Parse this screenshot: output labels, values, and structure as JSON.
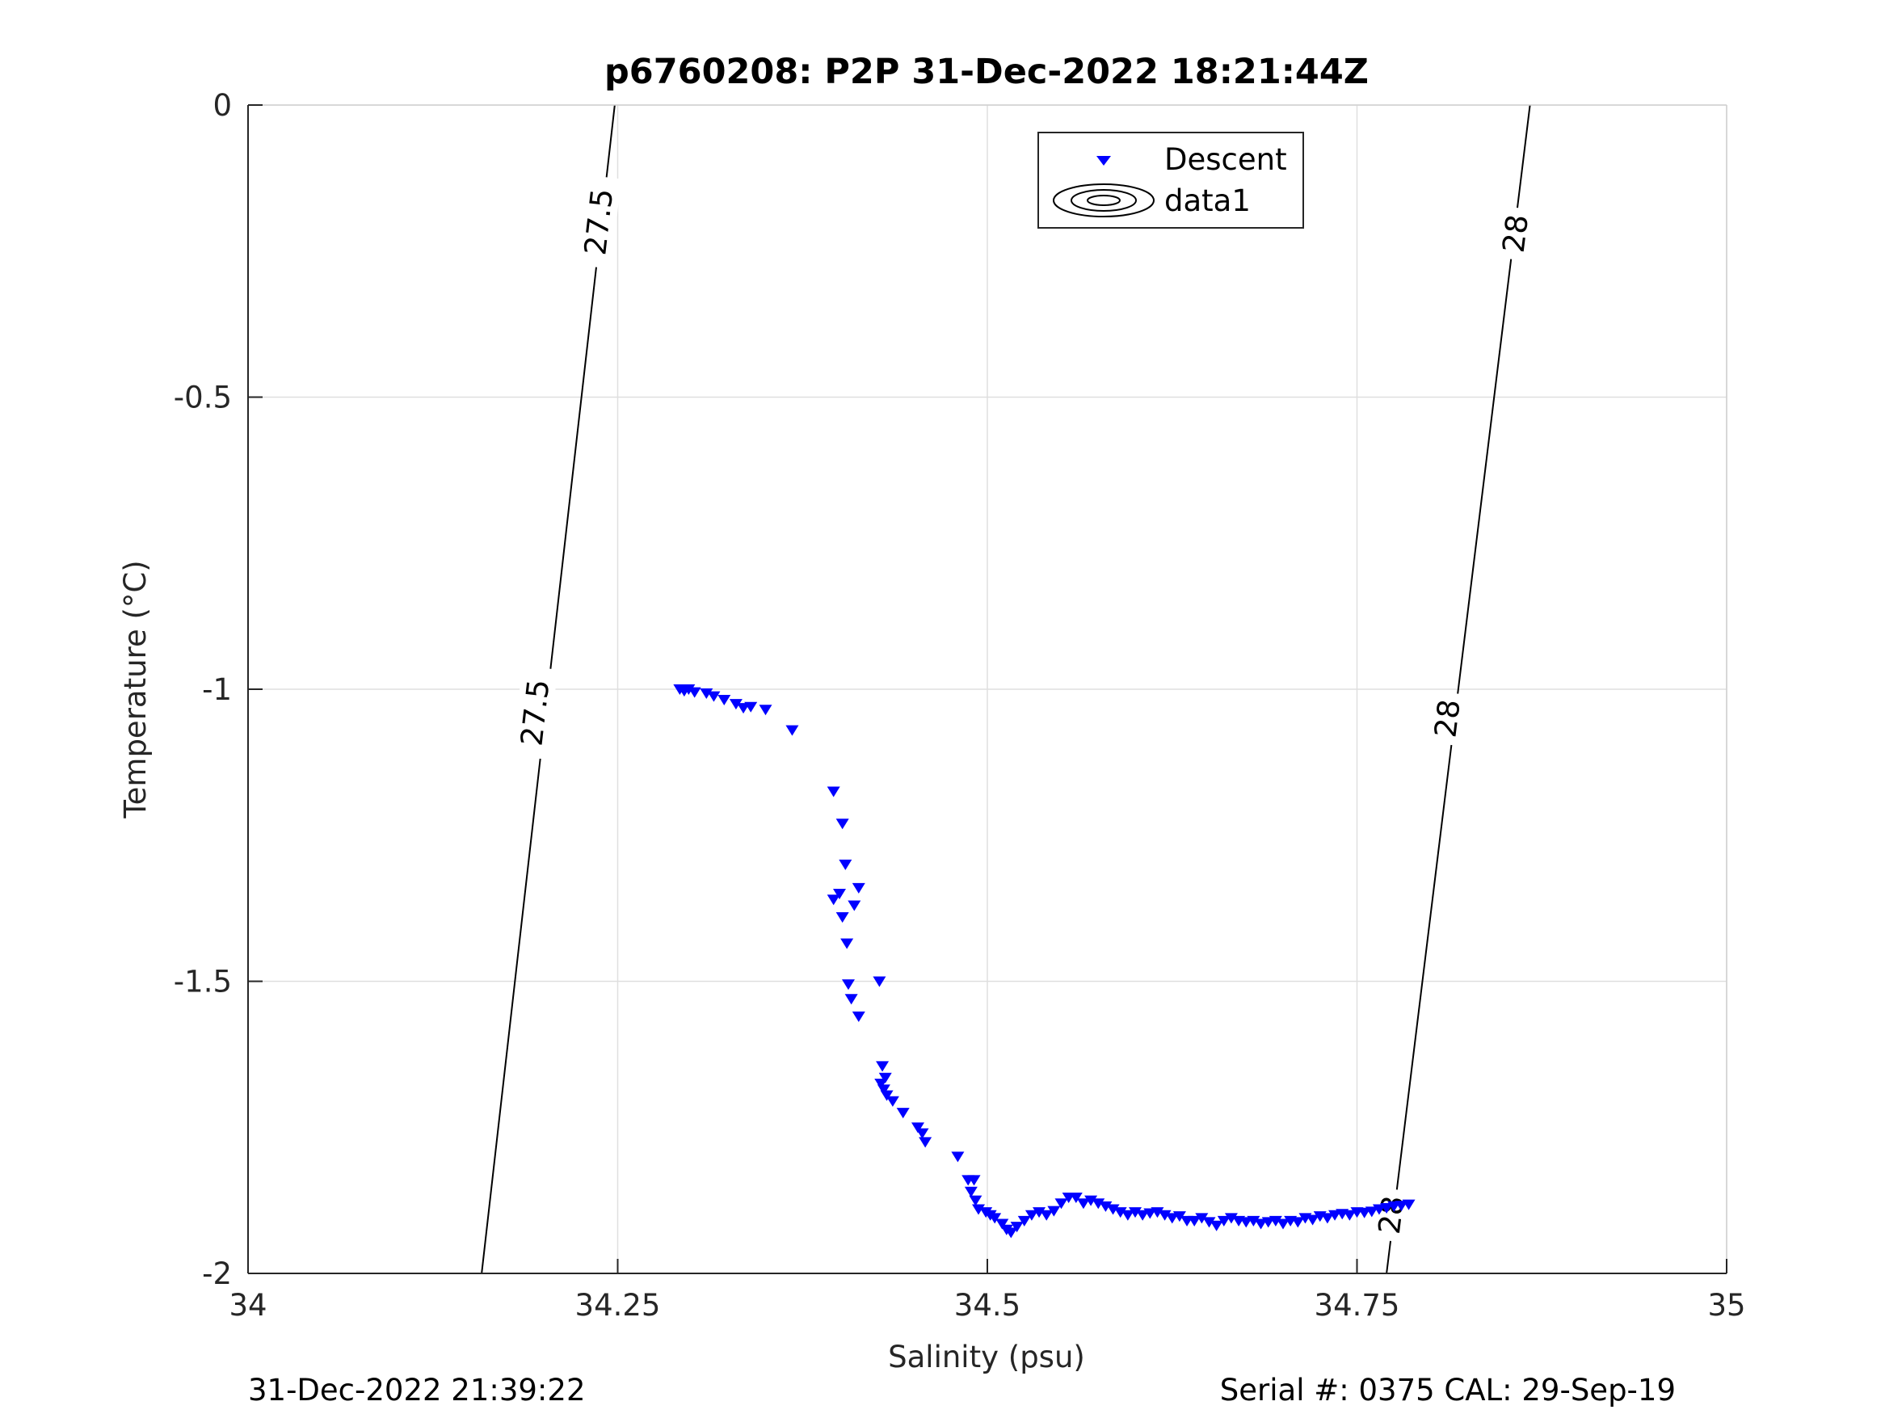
{
  "header": {
    "title": "p6760208: P2P 31-Dec-2022 18:21:44Z"
  },
  "footer": {
    "timestamp": "31-Dec-2022 21:39:22",
    "serial": "Serial #: 0375  CAL: 29-Sep-19"
  },
  "chart_data": {
    "type": "scatter",
    "title": "p6760208: P2P 31-Dec-2022 18:21:44Z",
    "xlabel": "Salinity (psu)",
    "ylabel": "Temperature (°C)",
    "xlim": [
      34,
      35
    ],
    "ylim": [
      -2,
      0
    ],
    "xticks": [
      34,
      34.25,
      34.5,
      34.75,
      35
    ],
    "xtick_labels": [
      "34",
      "34.25",
      "34.5",
      "34.75",
      "35"
    ],
    "yticks": [
      0,
      -0.5,
      -1,
      -1.5,
      -2
    ],
    "ytick_labels": [
      "0",
      "-0.5",
      "-1",
      "-1.5",
      "-2"
    ],
    "grid": true,
    "legend_position": "top-center",
    "legend": [
      "Descent",
      "data1"
    ],
    "series": [
      {
        "name": "Descent",
        "marker": "triangle-down",
        "color": "#0000ff",
        "points": [
          [
            34.292,
            -1.0
          ],
          [
            34.295,
            -1.003
          ],
          [
            34.298,
            -1.0
          ],
          [
            34.302,
            -1.005
          ],
          [
            34.31,
            -1.007
          ],
          [
            34.315,
            -1.012
          ],
          [
            34.322,
            -1.018
          ],
          [
            34.33,
            -1.025
          ],
          [
            34.335,
            -1.032
          ],
          [
            34.34,
            -1.03
          ],
          [
            34.35,
            -1.035
          ],
          [
            34.368,
            -1.07
          ],
          [
            34.396,
            -1.175
          ],
          [
            34.402,
            -1.23
          ],
          [
            34.404,
            -1.3
          ],
          [
            34.413,
            -1.34
          ],
          [
            34.4,
            -1.35
          ],
          [
            34.396,
            -1.36
          ],
          [
            34.41,
            -1.37
          ],
          [
            34.402,
            -1.39
          ],
          [
            34.405,
            -1.435
          ],
          [
            34.427,
            -1.5
          ],
          [
            34.406,
            -1.505
          ],
          [
            34.408,
            -1.53
          ],
          [
            34.413,
            -1.56
          ],
          [
            34.429,
            -1.645
          ],
          [
            34.431,
            -1.665
          ],
          [
            34.428,
            -1.675
          ],
          [
            34.43,
            -1.685
          ],
          [
            34.432,
            -1.695
          ],
          [
            34.436,
            -1.705
          ],
          [
            34.443,
            -1.725
          ],
          [
            34.453,
            -1.75
          ],
          [
            34.456,
            -1.76
          ],
          [
            34.458,
            -1.775
          ],
          [
            34.48,
            -1.8
          ],
          [
            34.487,
            -1.84
          ],
          [
            34.491,
            -1.84
          ],
          [
            34.489,
            -1.86
          ],
          [
            34.492,
            -1.875
          ],
          [
            34.494,
            -1.89
          ],
          [
            34.499,
            -1.895
          ],
          [
            34.502,
            -1.9
          ],
          [
            34.505,
            -1.905
          ],
          [
            34.51,
            -1.915
          ],
          [
            34.513,
            -1.925
          ],
          [
            34.516,
            -1.93
          ],
          [
            34.52,
            -1.92
          ],
          [
            34.525,
            -1.91
          ],
          [
            34.53,
            -1.9
          ],
          [
            34.535,
            -1.895
          ],
          [
            34.54,
            -1.9
          ],
          [
            34.545,
            -1.893
          ],
          [
            34.55,
            -1.88
          ],
          [
            34.555,
            -1.87
          ],
          [
            34.56,
            -1.87
          ],
          [
            34.565,
            -1.88
          ],
          [
            34.57,
            -1.875
          ],
          [
            34.575,
            -1.88
          ],
          [
            34.58,
            -1.885
          ],
          [
            34.585,
            -1.89
          ],
          [
            34.59,
            -1.895
          ],
          [
            34.595,
            -1.9
          ],
          [
            34.6,
            -1.895
          ],
          [
            34.605,
            -1.9
          ],
          [
            34.61,
            -1.897
          ],
          [
            34.615,
            -1.895
          ],
          [
            34.62,
            -1.9
          ],
          [
            34.625,
            -1.905
          ],
          [
            34.63,
            -1.902
          ],
          [
            34.635,
            -1.91
          ],
          [
            34.64,
            -1.91
          ],
          [
            34.645,
            -1.905
          ],
          [
            34.65,
            -1.912
          ],
          [
            34.655,
            -1.918
          ],
          [
            34.66,
            -1.91
          ],
          [
            34.665,
            -1.905
          ],
          [
            34.67,
            -1.91
          ],
          [
            34.675,
            -1.912
          ],
          [
            34.68,
            -1.91
          ],
          [
            34.685,
            -1.915
          ],
          [
            34.69,
            -1.912
          ],
          [
            34.695,
            -1.91
          ],
          [
            34.7,
            -1.915
          ],
          [
            34.705,
            -1.91
          ],
          [
            34.71,
            -1.912
          ],
          [
            34.715,
            -1.905
          ],
          [
            34.72,
            -1.908
          ],
          [
            34.725,
            -1.902
          ],
          [
            34.73,
            -1.905
          ],
          [
            34.735,
            -1.9
          ],
          [
            34.74,
            -1.898
          ],
          [
            34.745,
            -1.9
          ],
          [
            34.75,
            -1.895
          ],
          [
            34.755,
            -1.896
          ],
          [
            34.76,
            -1.894
          ],
          [
            34.765,
            -1.89
          ],
          [
            34.77,
            -1.888
          ],
          [
            34.775,
            -1.885
          ],
          [
            34.78,
            -1.884
          ],
          [
            34.785,
            -1.882
          ]
        ]
      },
      {
        "name": "data1",
        "type": "contour",
        "color": "#000000",
        "lines": [
          {
            "level": "27.5",
            "points": [
              [
                34.158,
                -2.0
              ],
              [
                34.248,
                0.0
              ]
            ]
          },
          {
            "level": "28",
            "points": [
              [
                34.77,
                -2.0
              ],
              [
                34.867,
                0.0
              ]
            ]
          }
        ],
        "labels": [
          {
            "text": "27.5",
            "s": 34.237,
            "t": -0.2
          },
          {
            "text": "27.5",
            "s": 34.194,
            "t": -1.04
          },
          {
            "text": "28",
            "s": 34.857,
            "t": -0.22
          },
          {
            "text": "28",
            "s": 34.811,
            "t": -1.05
          },
          {
            "text": "28",
            "s": 34.773,
            "t": -1.9
          }
        ]
      }
    ]
  }
}
